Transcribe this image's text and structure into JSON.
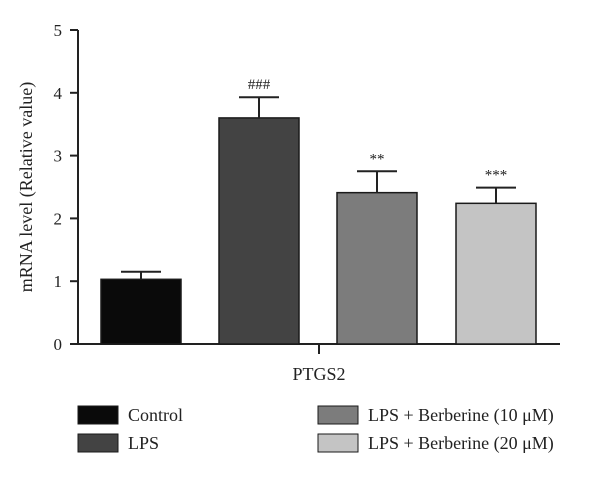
{
  "chart_data": {
    "type": "bar",
    "title": "",
    "xlabel": "",
    "ylabel": "mRNA level (Relative value)",
    "ylim": [
      0,
      5
    ],
    "yticks": [
      "0",
      "1",
      "2",
      "3",
      "4",
      "5"
    ],
    "categories": [
      "PTGS2"
    ],
    "series": [
      {
        "name": "Control",
        "values": [
          1.03
        ],
        "error": [
          0.12
        ],
        "color": "#0a0a0a",
        "annotation": ""
      },
      {
        "name": "LPS",
        "values": [
          3.6
        ],
        "error": [
          0.33
        ],
        "color": "#434343",
        "annotation": "###"
      },
      {
        "name": "LPS + Berberine (10 μM)",
        "values": [
          2.41
        ],
        "error": [
          0.34
        ],
        "color": "#7c7c7c",
        "annotation": "**"
      },
      {
        "name": "LPS + Berberine (20 μM)",
        "values": [
          2.24
        ],
        "error": [
          0.25
        ],
        "color": "#c4c4c4",
        "annotation": "***"
      }
    ],
    "grid": false,
    "legend_position": "bottom"
  }
}
